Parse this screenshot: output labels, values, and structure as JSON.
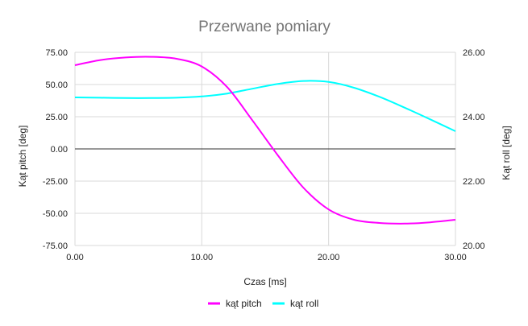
{
  "chart_data": {
    "type": "line",
    "title": "Przerwane pomiary",
    "xlabel": "Czas [ms]",
    "ylabel_left": "Kąt pitch [deg]",
    "ylabel_right": "Kąt roll [deg]",
    "xlim": [
      0,
      30
    ],
    "ylim_left": [
      -75,
      75
    ],
    "ylim_right": [
      20,
      26
    ],
    "x_ticks": [
      "0.00",
      "10.00",
      "20.00",
      "30.00"
    ],
    "y_ticks_left": [
      "75.00",
      "50.00",
      "25.00",
      "0.00",
      "-25.00",
      "-50.00",
      "-75.00"
    ],
    "y_ticks_right": [
      "26.00",
      "24.00",
      "22.00",
      "20.00"
    ],
    "grid": true,
    "legend_position": "bottom",
    "series": [
      {
        "name": "kąt pitch",
        "axis": "left",
        "color": "#ff00ff",
        "x": [
          0,
          2,
          4,
          6,
          8,
          10,
          12,
          14,
          16,
          18,
          20,
          22,
          24,
          26,
          28,
          30
        ],
        "y": [
          65,
          69,
          71,
          71.5,
          70,
          64,
          48,
          22,
          -5,
          -30,
          -47,
          -55,
          -57.5,
          -58,
          -57,
          -55
        ]
      },
      {
        "name": "kąt roll",
        "axis": "right",
        "color": "#00ffff",
        "x": [
          0,
          2,
          4,
          6,
          8,
          10,
          12,
          14,
          16,
          18,
          20,
          22,
          24,
          26,
          28,
          30
        ],
        "y": [
          24.6,
          24.59,
          24.58,
          24.58,
          24.59,
          24.63,
          24.72,
          24.87,
          25.02,
          25.11,
          25.08,
          24.9,
          24.62,
          24.28,
          23.92,
          23.55
        ]
      }
    ]
  }
}
